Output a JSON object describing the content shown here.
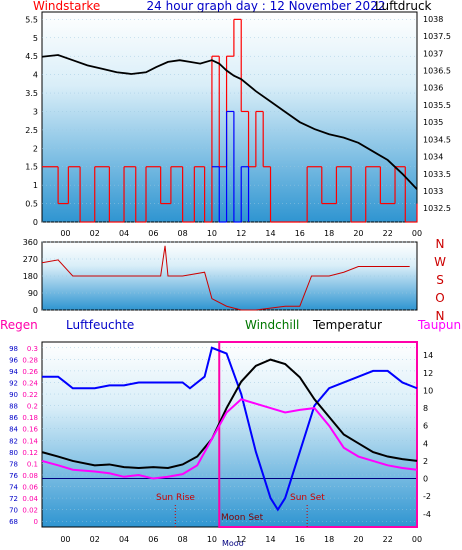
{
  "header": {
    "left": "Windstarke",
    "center": "24 hour graph day : 12 November 2022",
    "right": "Luftdruck"
  },
  "bottom_header": {
    "regen": "Regen",
    "luftfeuchte": "Luftfeuchte",
    "windchill": "Windchill",
    "temperatur": "Temperatur",
    "taupunkt": "Taupunkt"
  },
  "compass_labels": [
    "N",
    "W",
    "S",
    "O",
    "N"
  ],
  "annotations": {
    "sun_rise": "Sun Rise",
    "sun_set": "Sun Set",
    "moon_set": "Moon Set",
    "mooon": "Mooo"
  },
  "colors": {
    "plot_bg_top": "#ffffff",
    "plot_bg_bottom": "#3a9fd6",
    "pressure": "#000000",
    "wind": "#ff0000",
    "gust": "#0000ff",
    "direction": "#cc0000",
    "humidity": "#0000ff",
    "temperature": "#000000",
    "dewpoint": "#ff00ff",
    "rain": "#ff00aa",
    "navy": "#000080"
  },
  "chart_data": [
    {
      "type": "line",
      "name": "wind_and_pressure",
      "x_tick_labels": [
        "00",
        "02",
        "04",
        "06",
        "08",
        "10",
        "12",
        "14",
        "16",
        "18",
        "20",
        "22",
        "00"
      ],
      "wind_axis_ticks": [
        "0",
        "0.5",
        "1",
        "1.5",
        "2",
        "2.5",
        "3",
        "3.5",
        "4",
        "4.5",
        "5",
        "5.5"
      ],
      "pressure_axis_ticks": [
        "1032.5",
        "1033",
        "1033.5",
        "1034",
        "1034.5",
        "1035",
        "1035.5",
        "1036",
        "1036.5",
        "1037",
        "1037.5",
        "1038"
      ],
      "wind_ylim": [
        0,
        5.7
      ],
      "pressure_ylim": [
        1032.1,
        1038.2
      ],
      "pressure_points": [
        [
          -1.6,
          1036.9
        ],
        [
          -0.5,
          1036.95
        ],
        [
          0.5,
          1036.8
        ],
        [
          1.5,
          1036.65
        ],
        [
          2.5,
          1036.55
        ],
        [
          3.5,
          1036.45
        ],
        [
          4.5,
          1036.4
        ],
        [
          5.5,
          1036.45
        ],
        [
          6.2,
          1036.6
        ],
        [
          7.0,
          1036.75
        ],
        [
          7.8,
          1036.8
        ],
        [
          8.5,
          1036.75
        ],
        [
          9.2,
          1036.7
        ],
        [
          10.0,
          1036.8
        ],
        [
          10.5,
          1036.7
        ],
        [
          11.0,
          1036.5
        ],
        [
          11.5,
          1036.35
        ],
        [
          12.0,
          1036.25
        ],
        [
          13.0,
          1035.9
        ],
        [
          14.0,
          1035.6
        ],
        [
          15.0,
          1035.3
        ],
        [
          16.0,
          1035.0
        ],
        [
          17.0,
          1034.8
        ],
        [
          18.0,
          1034.65
        ],
        [
          19.0,
          1034.55
        ],
        [
          20.0,
          1034.4
        ],
        [
          21.0,
          1034.15
        ],
        [
          22.0,
          1033.9
        ],
        [
          23.0,
          1033.5
        ],
        [
          24.0,
          1033.05
        ]
      ],
      "wind_segments": [
        [
          -1.6,
          1.5
        ],
        [
          -0.5,
          0.5
        ],
        [
          0.2,
          1.5
        ],
        [
          1.0,
          0
        ],
        [
          2.0,
          1.5
        ],
        [
          3.0,
          0
        ],
        [
          4.0,
          1.5
        ],
        [
          4.8,
          0
        ],
        [
          5.5,
          1.5
        ],
        [
          6.5,
          0.5
        ],
        [
          7.2,
          1.5
        ],
        [
          8.0,
          0
        ],
        [
          8.8,
          1.5
        ],
        [
          9.5,
          0
        ],
        [
          10.0,
          4.5
        ],
        [
          10.5,
          1.5
        ],
        [
          11.0,
          4.5
        ],
        [
          11.5,
          5.5
        ],
        [
          12.0,
          3.0
        ],
        [
          12.5,
          1.5
        ],
        [
          13.0,
          3.0
        ],
        [
          13.5,
          1.5
        ],
        [
          14.0,
          0
        ],
        [
          16.0,
          0
        ],
        [
          16.5,
          1.5
        ],
        [
          17.5,
          0.5
        ],
        [
          18.5,
          1.5
        ],
        [
          19.5,
          0
        ],
        [
          20.5,
          1.5
        ],
        [
          21.5,
          0.5
        ],
        [
          22.5,
          1.5
        ],
        [
          23.2,
          0
        ],
        [
          24.0,
          0.5
        ]
      ],
      "gust_segments": [
        [
          10.0,
          1.5
        ],
        [
          10.5,
          0
        ],
        [
          11.0,
          3.0
        ],
        [
          11.5,
          0
        ],
        [
          12.0,
          1.5
        ],
        [
          12.5,
          0
        ]
      ]
    },
    {
      "type": "line",
      "name": "wind_direction",
      "x_tick_labels": [],
      "y_tick_labels": [
        "0",
        "90",
        "180",
        "270",
        "360"
      ],
      "ylim": [
        0,
        360
      ],
      "points": [
        [
          -1.6,
          250
        ],
        [
          -0.5,
          265
        ],
        [
          0.5,
          180
        ],
        [
          2.0,
          180
        ],
        [
          4.0,
          180
        ],
        [
          6.5,
          180
        ],
        [
          6.8,
          340
        ],
        [
          7.0,
          180
        ],
        [
          8.0,
          180
        ],
        [
          9.5,
          200
        ],
        [
          10.0,
          60
        ],
        [
          11.0,
          20
        ],
        [
          12.0,
          0
        ],
        [
          13.0,
          0
        ],
        [
          14.0,
          10
        ],
        [
          15.0,
          20
        ],
        [
          16.0,
          20
        ],
        [
          16.8,
          180
        ],
        [
          18.0,
          180
        ],
        [
          19.0,
          200
        ],
        [
          20.0,
          230
        ],
        [
          21.0,
          230
        ],
        [
          23.5,
          230
        ]
      ]
    },
    {
      "type": "line",
      "name": "climate",
      "x_tick_labels": [
        "00",
        "02",
        "04",
        "06",
        "08",
        "10",
        "12",
        "14",
        "16",
        "18",
        "20",
        "22",
        "00"
      ],
      "rain_axis_ticks": [
        "0",
        "0.02",
        "0.04",
        "0.06",
        "0.08",
        "0.1",
        "0.12",
        "0.14",
        "0.16",
        "0.18",
        "0.2",
        "0.22",
        "0.24",
        "0.26",
        "0.28",
        "0.3"
      ],
      "humidity_axis_ticks": [
        "68",
        "70",
        "72",
        "74",
        "76",
        "78",
        "80",
        "82",
        "84",
        "86",
        "88",
        "90",
        "92",
        "94",
        "96",
        "98"
      ],
      "temp_axis_ticks": [
        "-4",
        "-2",
        "0",
        "2",
        "4",
        "6",
        "8",
        "10",
        "12",
        "14"
      ],
      "humidity_ylim": [
        67,
        99
      ],
      "temp_ylim": [
        -5.5,
        15.5
      ],
      "humidity": [
        [
          -1.6,
          93
        ],
        [
          -0.5,
          93
        ],
        [
          0,
          92
        ],
        [
          0.5,
          91
        ],
        [
          2.0,
          91
        ],
        [
          3.0,
          91.5
        ],
        [
          4.0,
          91.5
        ],
        [
          5.0,
          92
        ],
        [
          6.0,
          92
        ],
        [
          7.0,
          92
        ],
        [
          8.0,
          92
        ],
        [
          8.5,
          91
        ],
        [
          9.5,
          93
        ],
        [
          10.0,
          98
        ],
        [
          11.0,
          97
        ],
        [
          12.0,
          90
        ],
        [
          13.0,
          80
        ],
        [
          14.0,
          72
        ],
        [
          14.5,
          70
        ],
        [
          15.0,
          72
        ],
        [
          16.0,
          80
        ],
        [
          17.0,
          88
        ],
        [
          18.0,
          91
        ],
        [
          19.0,
          92
        ],
        [
          20.0,
          93
        ],
        [
          21.0,
          94
        ],
        [
          22.0,
          94
        ],
        [
          23.0,
          92
        ],
        [
          24.0,
          91
        ]
      ],
      "temperature": [
        [
          -1.6,
          3.0
        ],
        [
          -0.5,
          2.5
        ],
        [
          0.5,
          2.0
        ],
        [
          2.0,
          1.5
        ],
        [
          3.0,
          1.6
        ],
        [
          4.0,
          1.3
        ],
        [
          5.0,
          1.2
        ],
        [
          6.0,
          1.3
        ],
        [
          7.0,
          1.2
        ],
        [
          8.0,
          1.6
        ],
        [
          9.0,
          2.5
        ],
        [
          10.0,
          4.5
        ],
        [
          11.0,
          8.0
        ],
        [
          12.0,
          11.0
        ],
        [
          13.0,
          12.8
        ],
        [
          14.0,
          13.5
        ],
        [
          15.0,
          13.0
        ],
        [
          16.0,
          11.5
        ],
        [
          17.0,
          9.0
        ],
        [
          18.0,
          7.0
        ],
        [
          19.0,
          5.0
        ],
        [
          20.0,
          4.0
        ],
        [
          21.0,
          3.0
        ],
        [
          22.0,
          2.5
        ],
        [
          23.0,
          2.2
        ],
        [
          24.0,
          2.0
        ]
      ],
      "dewpoint": [
        [
          -1.6,
          2.0
        ],
        [
          -0.5,
          1.5
        ],
        [
          0.5,
          1.0
        ],
        [
          2.0,
          0.8
        ],
        [
          3.0,
          0.6
        ],
        [
          4.0,
          0.2
        ],
        [
          5.0,
          0.4
        ],
        [
          6.0,
          0.0
        ],
        [
          7.0,
          0.2
        ],
        [
          8.0,
          0.5
        ],
        [
          9.0,
          1.5
        ],
        [
          10.0,
          4.5
        ],
        [
          11.0,
          7.5
        ],
        [
          12.0,
          9.0
        ],
        [
          13.0,
          8.5
        ],
        [
          14.0,
          8.0
        ],
        [
          15.0,
          7.5
        ],
        [
          16.0,
          7.8
        ],
        [
          17.0,
          8.0
        ],
        [
          18.0,
          6.0
        ],
        [
          19.0,
          3.5
        ],
        [
          20.0,
          2.5
        ],
        [
          21.0,
          2.0
        ],
        [
          22.0,
          1.5
        ],
        [
          23.0,
          1.2
        ],
        [
          24.0,
          1.0
        ]
      ],
      "sun_rise_hour": 7.5,
      "sun_set_hour": 16.5,
      "moon_set_hour": 10.5,
      "rain_block": [
        10.5,
        24.0,
        0.3
      ]
    }
  ]
}
